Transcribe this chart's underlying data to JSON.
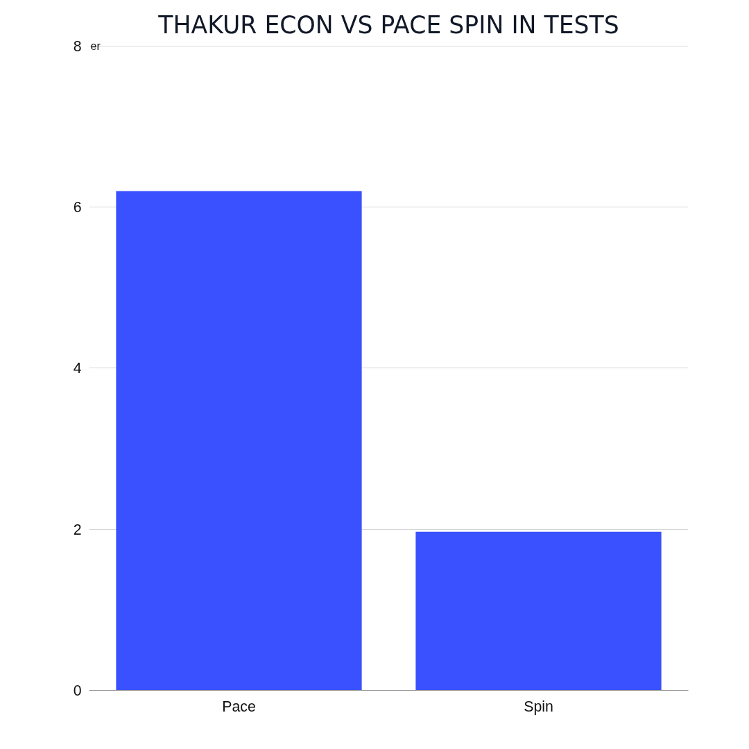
{
  "chart_data": {
    "type": "bar",
    "title": "THAKUR ECON VS PACE SPIN IN TESTS",
    "ylabel": "er",
    "categories": [
      "Pace",
      "Spin"
    ],
    "values": [
      6.2,
      1.97
    ],
    "color": "#3a51ff",
    "ylim": [
      0,
      8
    ],
    "yticks": [
      0,
      2,
      4,
      6,
      8
    ],
    "grid": "y"
  }
}
